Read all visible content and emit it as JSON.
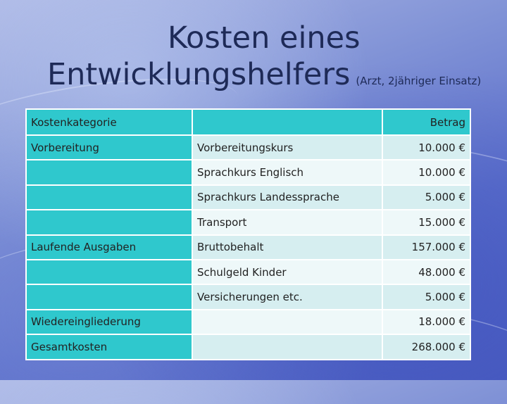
{
  "title": {
    "line1": "Kosten eines",
    "line2": "Entwicklungshelfers",
    "subtitle": "(Arzt, 2jähriger Einsatz)"
  },
  "table": {
    "headers": {
      "category": "Kostenkategorie",
      "item": "",
      "amount": "Betrag"
    },
    "rows": [
      {
        "category": "Vorbereitung",
        "item": "Vorbereitungskurs",
        "amount": "10.000 €"
      },
      {
        "category": "",
        "item": "Sprachkurs Englisch",
        "amount": "10.000 €"
      },
      {
        "category": "",
        "item": "Sprachkurs Landessprache",
        "amount": "5.000 €"
      },
      {
        "category": "",
        "item": "Transport",
        "amount": "15.000 €"
      },
      {
        "category": "Laufende Ausgaben",
        "item": "Bruttobehalt",
        "amount": "157.000 €"
      },
      {
        "category": "",
        "item": "Schulgeld Kinder",
        "amount": "48.000 €"
      },
      {
        "category": "",
        "item": "Versicherungen etc.",
        "amount": "5.000 €"
      },
      {
        "category": "Wiedereingliederung",
        "item": "",
        "amount": "18.000 €"
      },
      {
        "category": "Gesamtkosten",
        "item": "",
        "amount": "268.000 €"
      }
    ]
  },
  "colors": {
    "header_bg": "#2fc8cd",
    "category_bg": "#2fc8cd",
    "row_bg": "#d6eef0",
    "row_alt_bg": "#eef8f9",
    "title_text": "#1e2a57"
  }
}
